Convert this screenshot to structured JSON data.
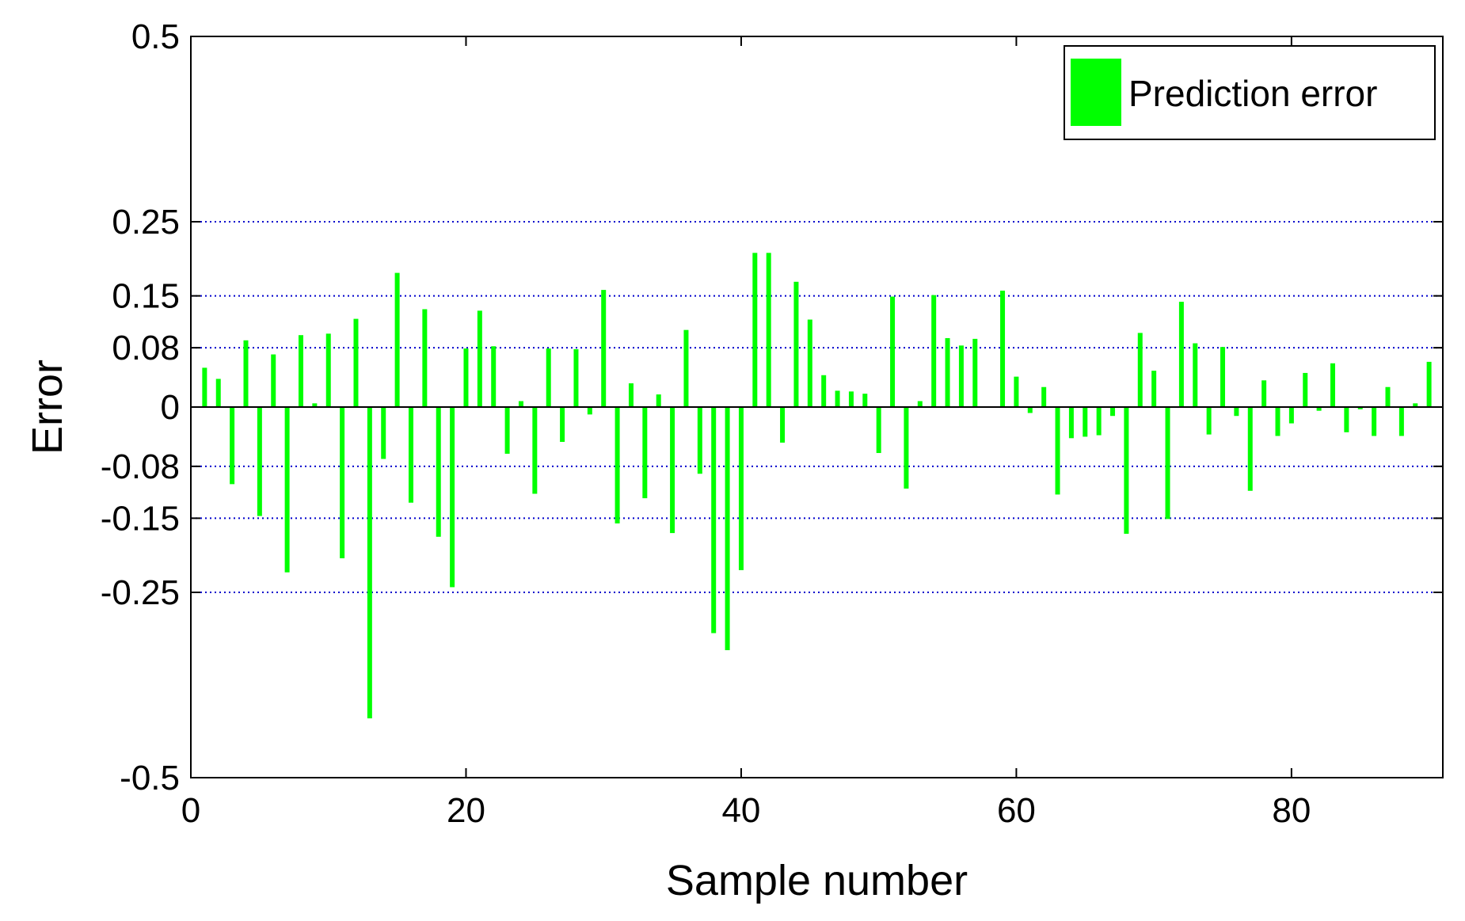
{
  "chart_data": {
    "type": "bar",
    "xlabel": "Sample number",
    "ylabel": "Error",
    "xlim": [
      0,
      91
    ],
    "ylim": [
      -0.5,
      0.5
    ],
    "xticks": [
      "0",
      "20",
      "40",
      "60",
      "80"
    ],
    "xtick_values": [
      0,
      20,
      40,
      60,
      80
    ],
    "yticks": [
      "-0.5",
      "-0.25",
      "-0.15",
      "-0.08",
      "0",
      "0.08",
      "0.15",
      "0.25",
      "0.5"
    ],
    "ytick_values": [
      -0.5,
      -0.25,
      -0.15,
      -0.08,
      0,
      0.08,
      0.15,
      0.25,
      0.5
    ],
    "grid_values": [
      -0.25,
      -0.15,
      -0.08,
      0.08,
      0.15,
      0.25
    ],
    "grid": "dotted horizontal at labeled ticks",
    "bar_color": "#00ff00",
    "grid_color": "#0000cc",
    "legend": {
      "label": "Prediction error",
      "placement": "top-right"
    },
    "series": [
      {
        "name": "Prediction error",
        "x": [
          1,
          2,
          3,
          4,
          5,
          6,
          7,
          8,
          9,
          10,
          11,
          12,
          13,
          14,
          15,
          16,
          17,
          18,
          19,
          20,
          21,
          22,
          23,
          24,
          25,
          26,
          27,
          28,
          29,
          30,
          31,
          32,
          33,
          34,
          35,
          36,
          37,
          38,
          39,
          40,
          41,
          42,
          43,
          44,
          45,
          46,
          47,
          48,
          49,
          50,
          51,
          52,
          53,
          54,
          55,
          56,
          57,
          58,
          59,
          60,
          61,
          62,
          63,
          64,
          65,
          66,
          67,
          68,
          69,
          70,
          71,
          72,
          73,
          74,
          75,
          76,
          77,
          78,
          79,
          80,
          81,
          82,
          83,
          84,
          85,
          86,
          87,
          88,
          89,
          90
        ],
        "values": [
          0.053,
          0.038,
          -0.104,
          0.09,
          -0.147,
          0.071,
          -0.223,
          0.097,
          0.005,
          0.099,
          -0.204,
          0.119,
          -0.42,
          -0.07,
          0.181,
          -0.129,
          0.132,
          -0.175,
          -0.243,
          0.079,
          0.13,
          0.082,
          -0.063,
          0.008,
          -0.117,
          0.079,
          -0.047,
          0.078,
          -0.01,
          0.158,
          -0.157,
          0.032,
          -0.123,
          0.017,
          -0.17,
          0.104,
          -0.09,
          -0.305,
          -0.328,
          -0.22,
          0.208,
          0.208,
          -0.048,
          0.169,
          0.118,
          0.043,
          0.022,
          0.021,
          0.018,
          -0.062,
          0.149,
          -0.11,
          0.008,
          0.151,
          0.093,
          0.083,
          0.092,
          0,
          0.157,
          0.041,
          -0.008,
          0.027,
          -0.118,
          -0.042,
          -0.04,
          -0.038,
          -0.012,
          -0.171,
          0.1,
          0.049,
          -0.151,
          0.142,
          0.086,
          -0.037,
          0.081,
          -0.012,
          -0.113,
          0.036,
          -0.039,
          -0.022,
          0.046,
          -0.005,
          0.059,
          -0.034,
          -0.003,
          -0.039,
          0.027,
          -0.039,
          0.005,
          0.061
        ]
      }
    ]
  }
}
